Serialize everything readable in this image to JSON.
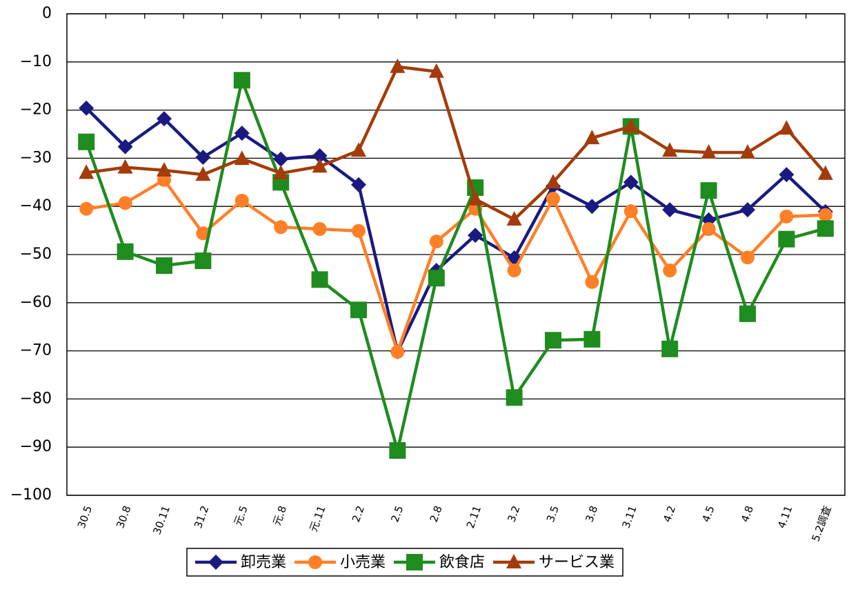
{
  "chart_data": {
    "type": "line",
    "categories": [
      "30.5",
      "30.8",
      "30.11",
      "31.2",
      "元.5",
      "元.8",
      "元.11",
      "2.2",
      "2.5",
      "2.8",
      "2.11",
      "3.2",
      "3.5",
      "3.8",
      "3.11",
      "4.2",
      "4.5",
      "4.8",
      "4.11",
      "5.2調査"
    ],
    "series": [
      {
        "name": "卸売業",
        "color": "#1a1a80",
        "marker": "diamond",
        "values": [
          -19.6,
          -27.6,
          -21.8,
          -29.8,
          -24.8,
          -30.2,
          -29.5,
          -35.5,
          -70.2,
          -53.3,
          -46.0,
          -50.7,
          -35.8,
          -40.0,
          -35.0,
          -40.7,
          -42.8,
          -40.7,
          -33.4,
          -41.1
        ]
      },
      {
        "name": "小売業",
        "color": "#ff7f27",
        "marker": "circle",
        "values": [
          -40.5,
          -39.3,
          -34.5,
          -45.6,
          -38.8,
          -44.3,
          -44.7,
          -45.1,
          -70.2,
          -47.3,
          -40.5,
          -53.3,
          -38.4,
          -55.7,
          -41.0,
          -53.3,
          -44.7,
          -50.6,
          -42.1,
          -41.8
        ]
      },
      {
        "name": "飲食店",
        "color": "#1e8c1e",
        "marker": "square",
        "values": [
          -26.6,
          -49.4,
          -52.3,
          -51.3,
          -13.8,
          -35.0,
          -55.2,
          -61.5,
          -90.7,
          -54.9,
          -36.1,
          -79.7,
          -67.8,
          -67.6,
          -23.4,
          -69.6,
          -36.7,
          -62.3,
          -46.8,
          -44.6
        ]
      },
      {
        "name": "サービス業",
        "color": "#a33c0a",
        "marker": "triangle",
        "values": [
          -33.0,
          -31.9,
          -32.5,
          -33.4,
          -30.1,
          -33.1,
          -31.7,
          -28.4,
          -11.0,
          -12.0,
          -38.5,
          -42.7,
          -35.0,
          -25.8,
          -23.4,
          -28.4,
          -28.8,
          -28.8,
          -23.8,
          -33.2
        ]
      }
    ],
    "ylim": [
      -100,
      0
    ],
    "yticks": [
      0,
      {
        "value": -10,
        "label": "−10"
      },
      {
        "value": -20,
        "label": "−20"
      },
      {
        "value": -30,
        "label": "−30"
      },
      {
        "value": -40,
        "label": "−40"
      },
      {
        "value": -50,
        "label": "−50"
      },
      {
        "value": -60,
        "label": "−60"
      },
      {
        "value": -70,
        "label": "−70"
      },
      {
        "value": -80,
        "label": "−80"
      },
      {
        "value": -90,
        "label": "−90"
      },
      {
        "value": -100,
        "label": "−100"
      }
    ],
    "grid": true,
    "legend": "bottom"
  }
}
